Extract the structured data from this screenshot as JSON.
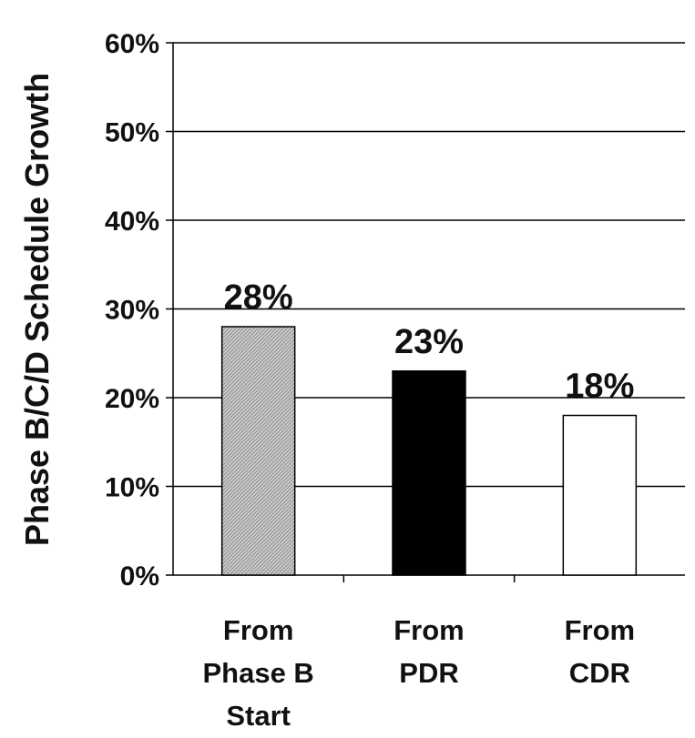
{
  "chart_data": {
    "type": "bar",
    "title": "",
    "xlabel": "",
    "ylabel": "Phase B/C/D Schedule Growth",
    "ylim": [
      0,
      60
    ],
    "yticks": [
      0,
      10,
      20,
      30,
      40,
      50,
      60
    ],
    "ytick_labels": [
      "0%",
      "10%",
      "20%",
      "30%",
      "40%",
      "50%",
      "60%"
    ],
    "grid": true,
    "categories": [
      [
        "From",
        "Phase B",
        "Start"
      ],
      [
        "From",
        "PDR"
      ],
      [
        "From",
        "CDR"
      ]
    ],
    "values": [
      28,
      23,
      18
    ],
    "data_labels": [
      "28%",
      "23%",
      "18%"
    ],
    "bar_styles": [
      "hatched-gray",
      "black",
      "white"
    ],
    "colors": {
      "gray": "#c8c8c8",
      "black": "#000000",
      "white": "#ffffff",
      "axis": "#000000"
    }
  }
}
